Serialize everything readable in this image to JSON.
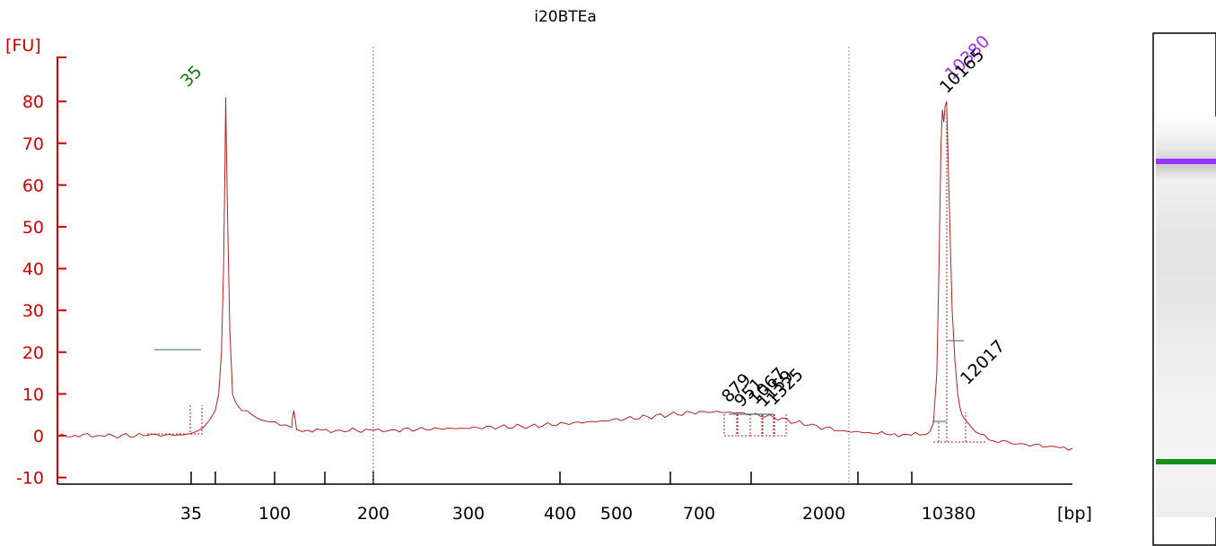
{
  "chart_data": {
    "type": "line",
    "title": "i20BTEa",
    "ylabel": "[FU]",
    "xlabel": "[bp]",
    "ylim": [
      -12,
      92
    ],
    "y_ticks": [
      -10,
      0,
      10,
      20,
      30,
      40,
      50,
      60,
      70,
      80
    ],
    "x_ticks": [
      "35",
      "100",
      "200",
      "300",
      "400",
      "500",
      "700",
      "2000",
      "10380"
    ],
    "x_unlabeled_ticks": 6,
    "grid": false,
    "legend": "none",
    "colors": {
      "axis": "#cc0000",
      "trace": "#b22222",
      "marker_green": "#117711",
      "marker_purple": "#9933ff",
      "label_black": "#000000",
      "baseline_teal": "#336666",
      "gel_lower": "#1a8c1a",
      "gel_upper": "#9933ff"
    },
    "series": [
      {
        "values": [
          [
            21,
            0
          ],
          [
            45,
            0.1
          ],
          [
            100,
            0
          ],
          [
            150,
            0.1
          ],
          [
            200,
            0.2
          ],
          [
            210,
            0.5
          ],
          [
            222,
            1.2
          ],
          [
            230,
            2
          ],
          [
            240,
            4
          ],
          [
            247,
            6
          ],
          [
            252,
            10
          ],
          [
            256,
            20
          ],
          [
            259,
            40
          ],
          [
            261,
            65
          ],
          [
            262,
            81
          ],
          [
            263,
            70
          ],
          [
            265,
            50
          ],
          [
            268,
            25
          ],
          [
            272,
            10
          ],
          [
            276,
            8
          ],
          [
            285,
            6
          ],
          [
            300,
            5
          ],
          [
            320,
            3.5
          ],
          [
            340,
            2.5
          ],
          [
            357,
            2
          ],
          [
            358,
            4
          ],
          [
            360,
            6
          ],
          [
            362,
            4
          ],
          [
            364,
            1.5
          ],
          [
            380,
            1.3
          ],
          [
            420,
            1.2
          ],
          [
            500,
            1.4
          ],
          [
            600,
            1.8
          ],
          [
            700,
            2.3
          ],
          [
            800,
            3.5
          ],
          [
            900,
            5
          ],
          [
            950,
            5.8
          ],
          [
            1000,
            5.5
          ],
          [
            1050,
            4.5
          ],
          [
            1100,
            2.5
          ],
          [
            1150,
            1.2
          ],
          [
            1200,
            0.5
          ],
          [
            1260,
            0.2
          ],
          [
            1270,
            0.3
          ],
          [
            1275,
            1
          ],
          [
            1280,
            3
          ],
          [
            1285,
            15
          ],
          [
            1288,
            40
          ],
          [
            1291,
            70
          ],
          [
            1293,
            78
          ],
          [
            1295,
            75
          ],
          [
            1297,
            79
          ],
          [
            1299,
            80
          ],
          [
            1301,
            68
          ],
          [
            1304,
            48
          ],
          [
            1307,
            30
          ],
          [
            1311,
            18
          ],
          [
            1315,
            10
          ],
          [
            1318,
            7
          ],
          [
            1321,
            5
          ],
          [
            1325,
            4
          ],
          [
            1330,
            3
          ],
          [
            1340,
            1
          ],
          [
            1360,
            -1
          ],
          [
            1400,
            -2
          ],
          [
            1450,
            -2.5
          ],
          [
            1480,
            -3
          ]
        ]
      }
    ],
    "peak_labels": [
      {
        "text": "35",
        "color": "green"
      },
      {
        "text": "10380",
        "color": "purple"
      },
      {
        "text": "10165",
        "color": "black"
      },
      {
        "text": "12017",
        "color": "black"
      },
      {
        "text": "879",
        "color": "black"
      },
      {
        "text": "951",
        "color": "black"
      },
      {
        "text": "1067",
        "color": "black"
      },
      {
        "text": "1159",
        "color": "black"
      },
      {
        "text": "1325",
        "color": "black"
      }
    ],
    "gel_lane": {
      "bands": [
        {
          "name": "upper-marker",
          "color": "purple"
        },
        {
          "name": "lower-marker",
          "color": "green"
        }
      ]
    }
  }
}
